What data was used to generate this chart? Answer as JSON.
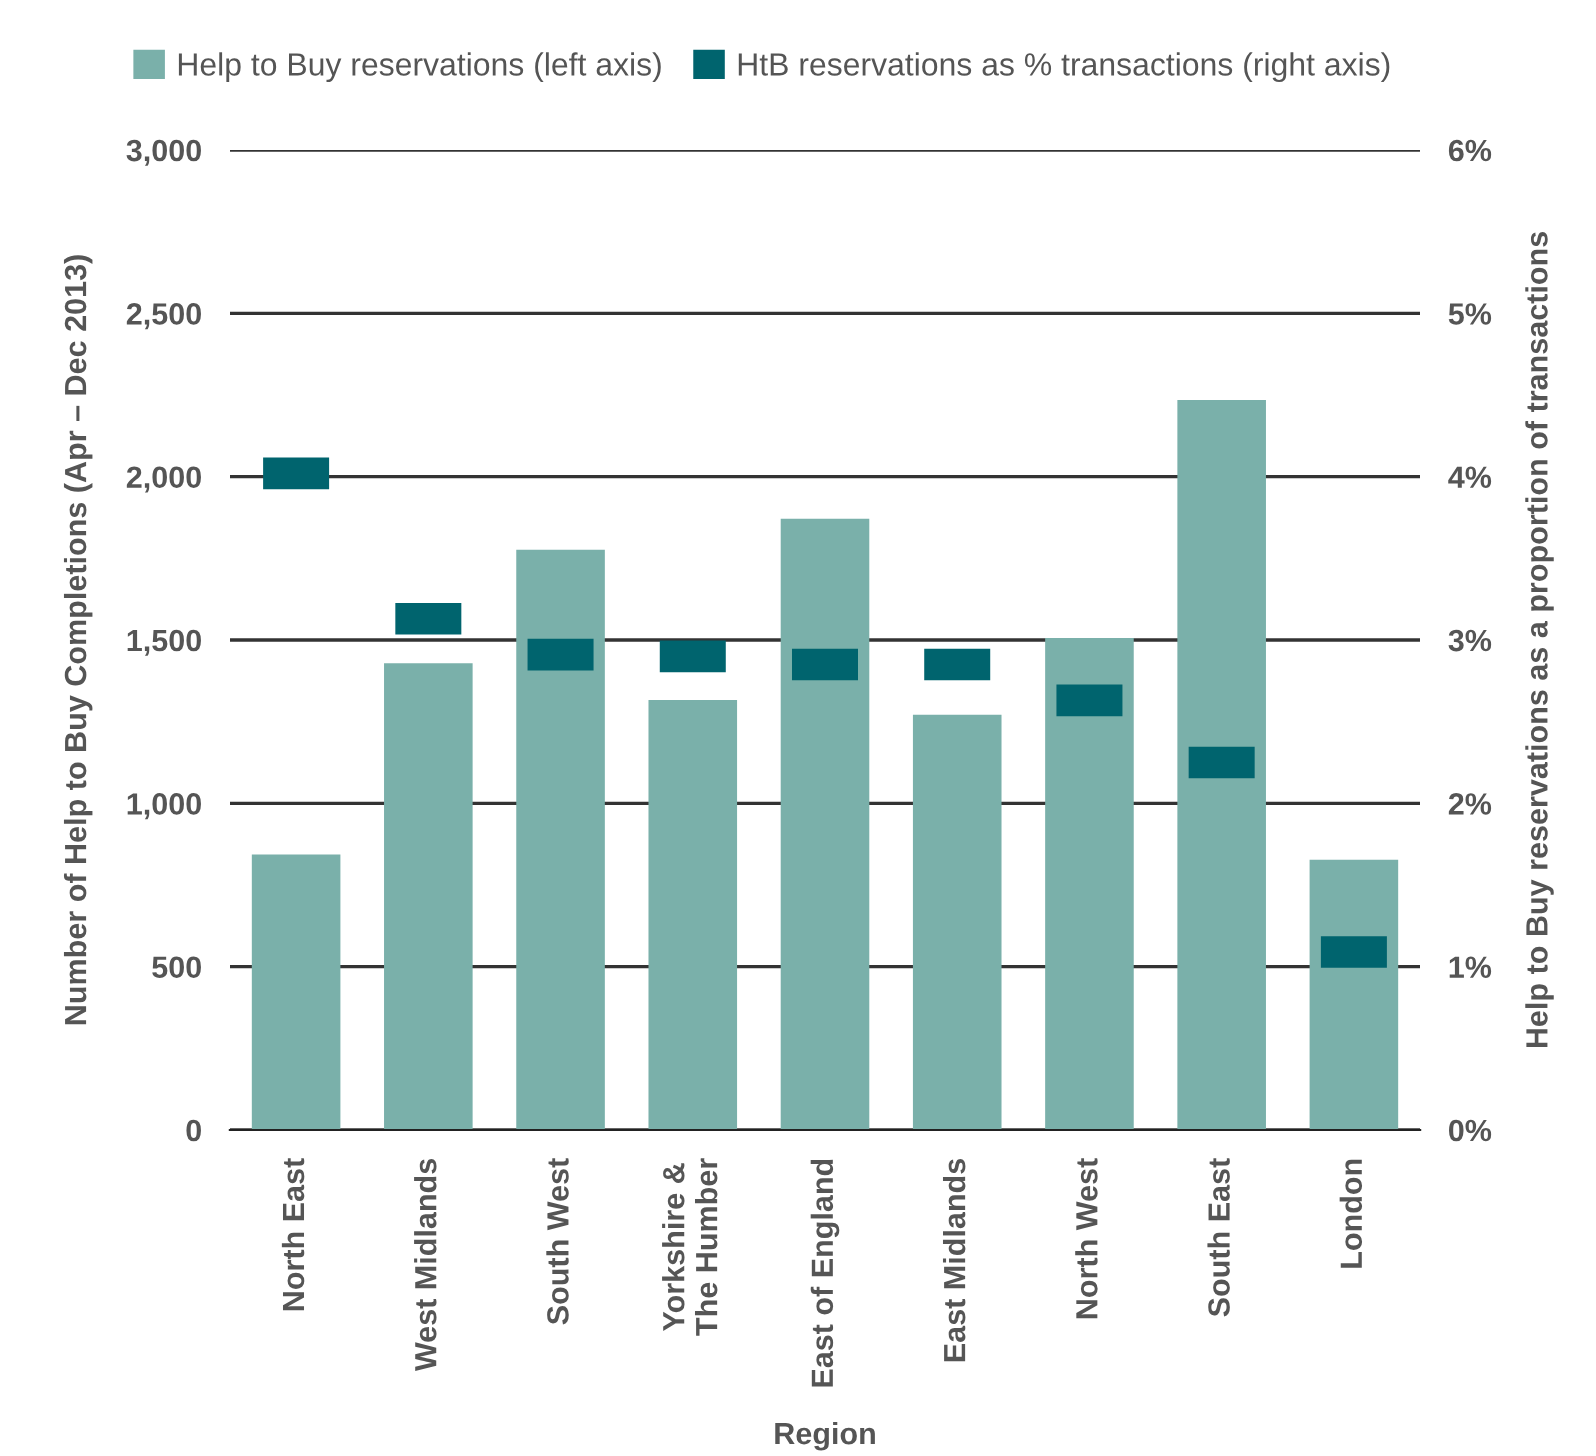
{
  "chart_data": {
    "type": "bar",
    "categories": [
      "North East",
      "West Midlands",
      "South West",
      "Yorkshire &\nThe Humber",
      "East of England",
      "East Midlands",
      "North West",
      "South East",
      "London"
    ],
    "series": [
      {
        "name": "Help to Buy reservations (left axis)",
        "color": "#7ab0aa",
        "values": [
          843,
          1429,
          1776,
          1316,
          1871,
          1271,
          1506,
          2235,
          827
        ]
      },
      {
        "name": "HtB reservations as % transactions (right axis)",
        "type": "scatter",
        "marker": "square",
        "axis": "y2",
        "color": "#00646e",
        "values": [
          4.02,
          3.13,
          2.91,
          2.9,
          2.85,
          2.85,
          2.63,
          2.25,
          1.09
        ]
      }
    ],
    "xlabel": "Region",
    "ylabel": "Number of Help to Buy Completions (Apr – Dec 2013)",
    "y2label": "Help to Buy reservations as a proportion of transactions",
    "ylim": [
      0,
      3000
    ],
    "yticks": [
      {
        "value": 0,
        "label": "0"
      },
      {
        "value": 500,
        "label": "500"
      },
      {
        "value": 1000,
        "label": "1,000"
      },
      {
        "value": 1500,
        "label": "1,500"
      },
      {
        "value": 2000,
        "label": "2,000"
      },
      {
        "value": 2500,
        "label": "2,500"
      },
      {
        "value": 3000,
        "label": "3,000"
      }
    ],
    "y2lim": [
      0,
      6
    ],
    "y2ticks": [
      {
        "value": 0,
        "label": "0%"
      },
      {
        "value": 1,
        "label": "1%"
      },
      {
        "value": 2,
        "label": "2%"
      },
      {
        "value": 3,
        "label": "3%"
      },
      {
        "value": 4,
        "label": "4%"
      },
      {
        "value": 5,
        "label": "5%"
      },
      {
        "value": 6,
        "label": "6%"
      }
    ],
    "grid": "y",
    "legend": "top"
  }
}
